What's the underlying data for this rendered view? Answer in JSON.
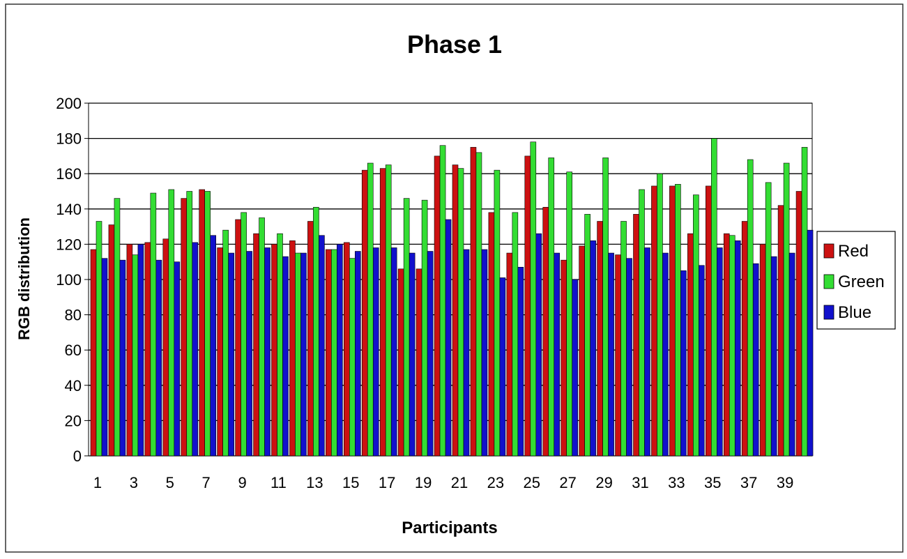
{
  "chart_data": {
    "type": "bar",
    "title": "Phase 1",
    "xlabel": "Participants",
    "ylabel": "RGB distribution",
    "ylim": [
      0,
      200
    ],
    "yticks": [
      0,
      20,
      40,
      60,
      80,
      100,
      120,
      140,
      160,
      180,
      200
    ],
    "grid": true,
    "legend_position": "right",
    "categories": [
      "1",
      "2",
      "3",
      "4",
      "5",
      "6",
      "7",
      "8",
      "9",
      "10",
      "11",
      "12",
      "13",
      "14",
      "15",
      "16",
      "17",
      "18",
      "19",
      "20",
      "21",
      "22",
      "23",
      "24",
      "25",
      "26",
      "27",
      "28",
      "29",
      "30",
      "31",
      "32",
      "33",
      "34",
      "35",
      "36",
      "37",
      "38",
      "39",
      "40"
    ],
    "x_tick_labels": [
      "1",
      "3",
      "5",
      "7",
      "9",
      "11",
      "13",
      "15",
      "17",
      "19",
      "21",
      "23",
      "25",
      "27",
      "29",
      "31",
      "33",
      "35",
      "37",
      "39"
    ],
    "series": [
      {
        "name": "Red",
        "color": "#cc1111",
        "values": [
          117,
          131,
          120,
          121,
          123,
          146,
          151,
          118,
          134,
          126,
          120,
          122,
          133,
          117,
          121,
          162,
          163,
          106,
          106,
          170,
          165,
          175,
          138,
          115,
          170,
          141,
          111,
          119,
          133,
          114,
          137,
          153,
          153,
          126,
          153,
          126,
          133,
          120,
          142,
          150
        ]
      },
      {
        "name": "Green",
        "color": "#33dd33",
        "values": [
          133,
          146,
          114,
          149,
          151,
          150,
          150,
          128,
          138,
          135,
          126,
          115,
          141,
          117,
          112,
          166,
          165,
          146,
          145,
          176,
          163,
          172,
          162,
          138,
          178,
          169,
          161,
          137,
          169,
          133,
          151,
          160,
          154,
          148,
          180,
          125,
          168,
          155,
          166,
          175
        ]
      },
      {
        "name": "Blue",
        "color": "#1111cc",
        "values": [
          112,
          111,
          120,
          111,
          110,
          121,
          125,
          115,
          116,
          118,
          113,
          115,
          125,
          120,
          116,
          118,
          118,
          115,
          116,
          134,
          117,
          117,
          101,
          107,
          126,
          115,
          100,
          122,
          115,
          112,
          118,
          115,
          105,
          108,
          118,
          122,
          109,
          113,
          115,
          128
        ]
      }
    ]
  }
}
